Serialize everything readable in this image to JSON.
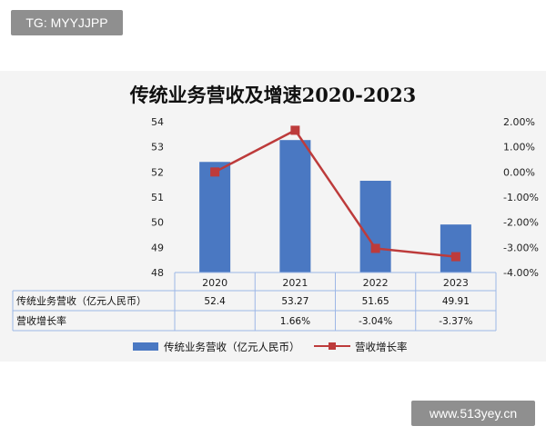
{
  "watermarks": {
    "top_left": "TG: MYYJJPP",
    "bottom_right": "www.513yey.cn"
  },
  "colors": {
    "bar": "#4a78c2",
    "line": "#bd3b3b",
    "panel_background": "#f4f4f4",
    "table_border": "#9db7e6"
  },
  "chart_data": {
    "type": "bar",
    "title": "传统业务营收及增速2020-2023",
    "categories": [
      "2020",
      "2021",
      "2022",
      "2023"
    ],
    "series": [
      {
        "name": "传统业务营收（亿元人民币）",
        "type": "bar",
        "axis": "left",
        "values": [
          52.4,
          53.27,
          51.65,
          49.91
        ],
        "labels": [
          "52.4",
          "53.27",
          "51.65",
          "49.91"
        ]
      },
      {
        "name": "营收增长率",
        "type": "line",
        "axis": "right",
        "values": [
          0.0,
          1.66,
          -3.04,
          -3.37
        ],
        "labels": [
          "",
          "1.66%",
          "-3.04%",
          "-3.37%"
        ]
      }
    ],
    "y_left": {
      "range": [
        48,
        54
      ],
      "ticks": [
        "48",
        "49",
        "50",
        "51",
        "52",
        "53",
        "54"
      ]
    },
    "y_right": {
      "range": [
        -4,
        2
      ],
      "unit": "%",
      "ticks": [
        "-4.00%",
        "-3.00%",
        "-2.00%",
        "-1.00%",
        "0.00%",
        "1.00%",
        "2.00%"
      ]
    },
    "grid": false,
    "legend_position": "bottom",
    "data_table": true
  }
}
